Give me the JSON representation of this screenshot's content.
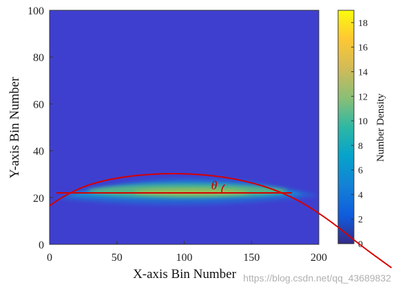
{
  "chart_data": {
    "type": "heatmap",
    "xlabel": "X-axis Bin Number",
    "ylabel": "Y-axis Bin Number",
    "xlim": [
      0,
      200
    ],
    "ylim": [
      0,
      100
    ],
    "x_ticks": [
      0,
      50,
      100,
      150,
      200
    ],
    "y_ticks": [
      0,
      20,
      40,
      60,
      80,
      100
    ],
    "colorbar": {
      "label": "Number Density",
      "range": [
        0,
        19
      ],
      "ticks": [
        0,
        2,
        4,
        6,
        8,
        10,
        12,
        14,
        16,
        18
      ],
      "colormap": "parula"
    },
    "density_band": {
      "horizontal_line_y": 22,
      "x_range": [
        5,
        200
      ],
      "peak_x": 100,
      "peak_y": 30
    },
    "annotation": {
      "symbol": "θ",
      "line_color": "#d40000",
      "horizontal_line": {
        "x": [
          5,
          180
        ],
        "y": 22
      },
      "arc_points": [
        [
          0,
          16.5
        ],
        [
          10,
          20.5
        ],
        [
          30,
          26
        ],
        [
          60,
          29.5
        ],
        [
          95,
          30.5
        ],
        [
          130,
          29
        ],
        [
          160,
          25
        ],
        [
          185,
          19
        ],
        [
          210,
          9.5
        ],
        [
          230,
          0
        ],
        [
          254,
          -10
        ]
      ]
    }
  },
  "watermark": "https://blog.csdn.net/qq_43689832"
}
